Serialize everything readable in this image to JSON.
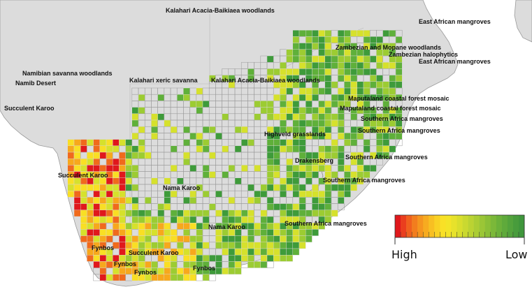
{
  "map": {
    "colors": {
      "land": "#dcdcdc",
      "land_stroke": "#9a9a9a",
      "ocean": "#ffffff",
      "grid_stroke": "#9a9a9a",
      "cell_stroke": "#d8d8d8",
      "scale": [
        "#e0181c",
        "#f06a1c",
        "#f7a81c",
        "#f9df24",
        "#d6e12c",
        "#9ccc32",
        "#5fb03a",
        "#3e9b3a"
      ]
    },
    "ecoregion_labels": [
      "Kalahari Acacia-Baikiaea woodlands",
      "East African mangroves",
      "Zambezian and Mopane woodlands",
      "Zambezian halophytics",
      "East African mangroves",
      "Namibian savanna woodlands",
      "Namib Desert",
      "Kalahari xeric savanna",
      "Kalahari Acacia-Baikiaea woodlands",
      "Maputaland coastal forest mosaic",
      "Maputaland coastal forest mosaic",
      "Succulent Karoo",
      "Southern Africa mangroves",
      "Southern Africa mangroves",
      "Highveld grasslands",
      "Drakensberg",
      "Southern Africa mangroves",
      "Succulent Karoo",
      "Southern Africa mangroves",
      "Nama Karoo",
      "Nama Karoo",
      "Southern Africa mangroves",
      "Fynbos",
      "Succulent Karoo",
      "Fynbos",
      "Fynbos",
      "Fynbos"
    ]
  },
  "legend": {
    "high_label": "High",
    "low_label": "Low",
    "colors": [
      "#e0181c",
      "#ea3e1e",
      "#f0601e",
      "#f27d1e",
      "#f5951f",
      "#f7ab20",
      "#f8bf22",
      "#f9d124",
      "#f9e026",
      "#f3e428",
      "#e7e22b",
      "#d9de2d",
      "#cad930",
      "#bbd332",
      "#abcd34",
      "#9bc636",
      "#8bbf37",
      "#7bb839",
      "#6cb13a",
      "#5faa3b",
      "#53a33c",
      "#489c3c",
      "#3f963c"
    ]
  }
}
